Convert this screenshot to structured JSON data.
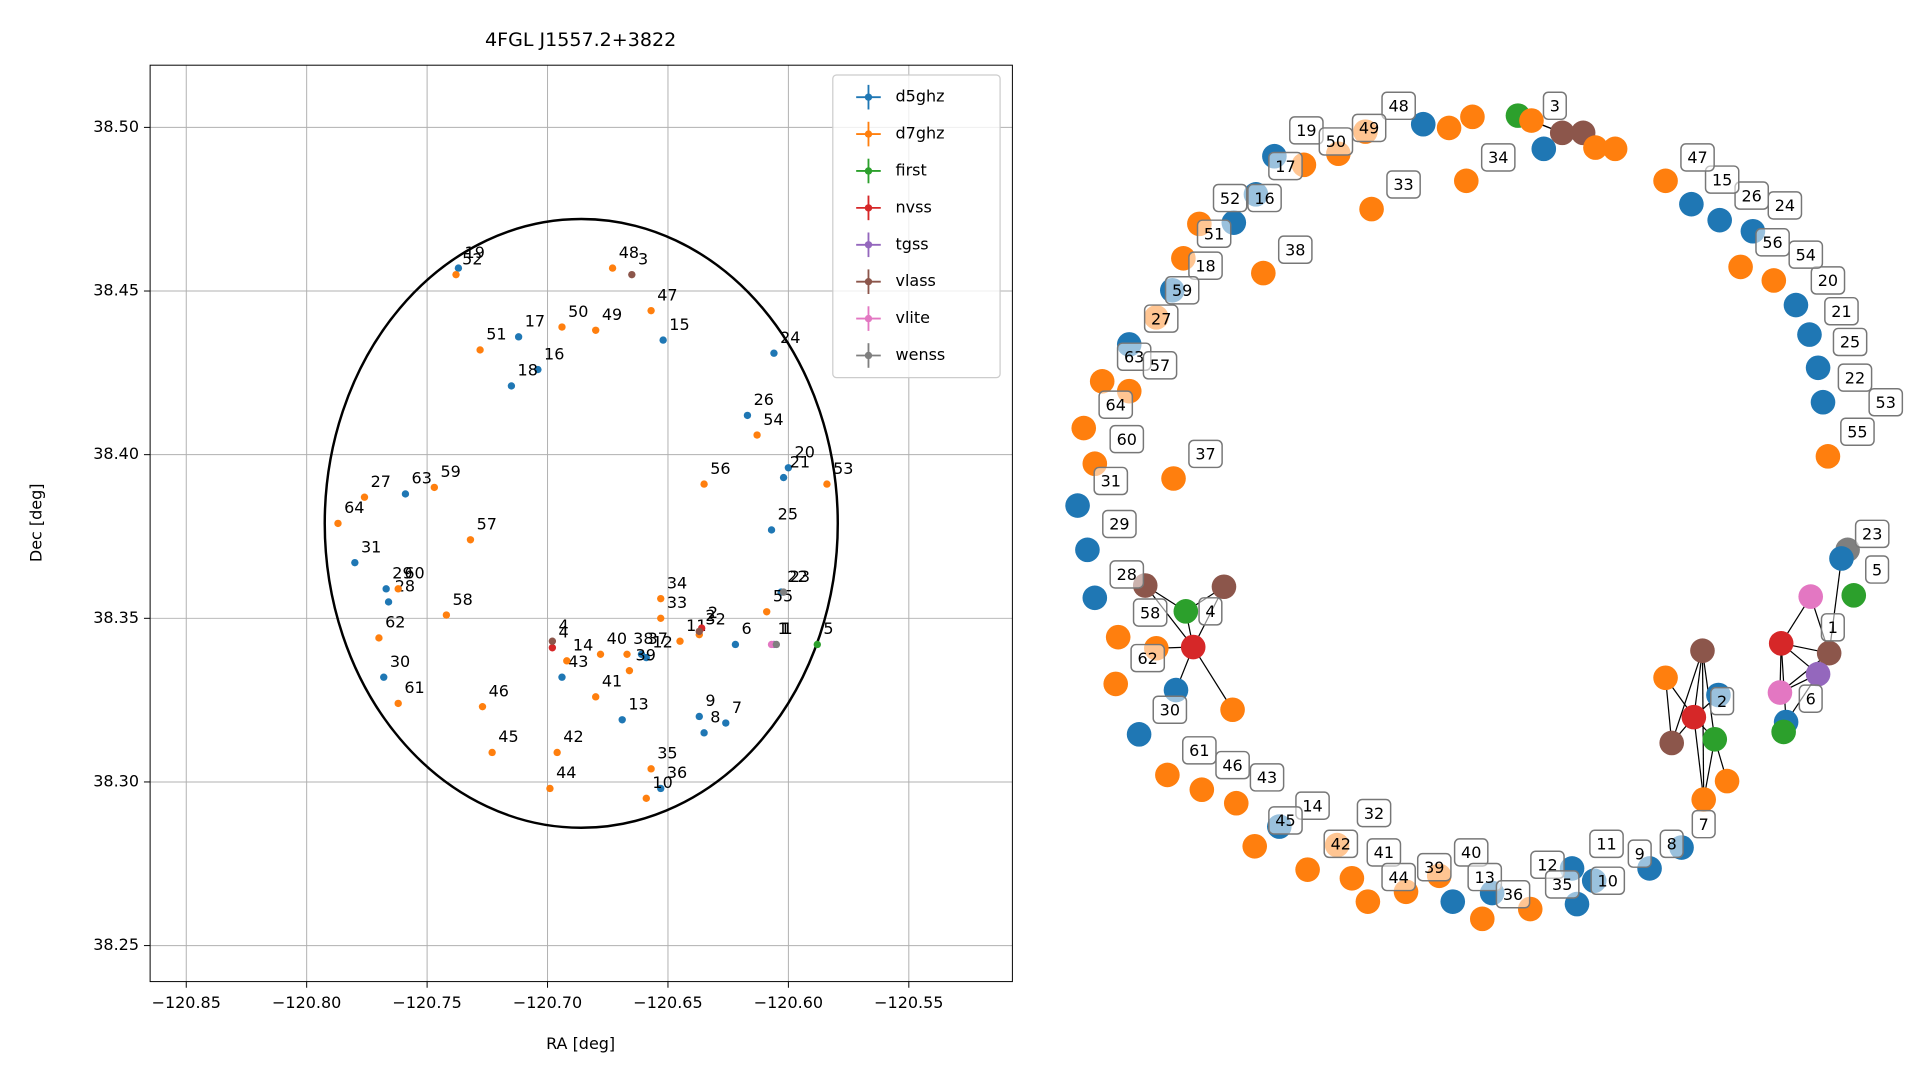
{
  "chart_data": {
    "type": "scatter",
    "title": "4FGL J1557.2+3822",
    "xlabel": "RA [deg]",
    "ylabel": "Dec [deg]",
    "xlim": [
      -120.865,
      -120.507
    ],
    "ylim": [
      38.239,
      38.519
    ],
    "xticks": [
      {
        "value": -120.85,
        "label": "−120.85"
      },
      {
        "value": -120.8,
        "label": "−120.80"
      },
      {
        "value": -120.75,
        "label": "−120.75"
      },
      {
        "value": -120.7,
        "label": "−120.70"
      },
      {
        "value": -120.65,
        "label": "−120.65"
      },
      {
        "value": -120.6,
        "label": "−120.60"
      },
      {
        "value": -120.55,
        "label": "−120.55"
      }
    ],
    "yticks": [
      38.25,
      {
        "value": 38.3,
        "label": "38.30"
      },
      38.35,
      {
        "value": 38.4,
        "label": "38.40"
      },
      38.45,
      {
        "value": 38.5,
        "label": "38.50"
      }
    ],
    "grid": true,
    "legend": "upper right",
    "ellipse": {
      "ra": -120.686,
      "dec": 38.379,
      "width": 0.213,
      "height": 0.186
    },
    "series": [
      {
        "name": "d5ghz",
        "color": "#1f77b4",
        "x": [
          -120.737,
          -120.712,
          -120.652,
          -120.704,
          -120.715,
          -120.606,
          -120.617,
          -120.6,
          -120.602,
          -120.607,
          -120.603,
          -120.622,
          -120.661,
          -120.659,
          -120.694,
          -120.669,
          -120.637,
          -120.635,
          -120.626,
          -120.653,
          -120.759,
          -120.78,
          -120.767,
          -120.766,
          -120.768
        ],
        "y": [
          38.457,
          38.436,
          38.435,
          38.426,
          38.421,
          38.431,
          38.412,
          38.396,
          38.393,
          38.377,
          38.358,
          38.342,
          38.339,
          38.338,
          38.332,
          38.319,
          38.32,
          38.315,
          38.318,
          38.298,
          38.388,
          38.367,
          38.359,
          38.355,
          38.332
        ],
        "labels": [
          "19",
          "17",
          "15",
          "16",
          "18",
          "24",
          "26",
          "20",
          "21",
          "25",
          "22",
          "6",
          "37",
          "12",
          "43",
          "13",
          "9",
          "8",
          "7",
          "36",
          "63",
          "31",
          "29",
          "28",
          "30"
        ]
      },
      {
        "name": "d7ghz",
        "color": "#ff7f0e",
        "x": [
          -120.738,
          -120.673,
          -120.657,
          -120.68,
          -120.694,
          -120.728,
          -120.613,
          -120.584,
          -120.635,
          -120.609,
          -120.637,
          -120.653,
          -120.653,
          -120.645,
          -120.667,
          -120.678,
          -120.692,
          -120.666,
          -120.68,
          -120.727,
          -120.723,
          -120.696,
          -120.699,
          -120.657,
          -120.659,
          -120.787,
          -120.776,
          -120.747,
          -120.732,
          -120.762,
          -120.77,
          -120.742,
          -120.762
        ],
        "y": [
          38.455,
          38.457,
          38.444,
          38.438,
          38.439,
          38.432,
          38.406,
          38.391,
          38.391,
          38.352,
          38.345,
          38.356,
          38.35,
          38.343,
          38.339,
          38.339,
          38.337,
          38.334,
          38.326,
          38.323,
          38.309,
          38.309,
          38.298,
          38.304,
          38.295,
          38.379,
          38.387,
          38.39,
          38.374,
          38.359,
          38.344,
          38.351,
          38.324
        ],
        "labels": [
          "52",
          "48",
          "47",
          "49",
          "50",
          "51",
          "54",
          "53",
          "56",
          "55",
          "32",
          "34",
          "33",
          "11",
          "38",
          "40",
          "14",
          "39",
          "41",
          "46",
          "45",
          "42",
          "44",
          "35",
          "10",
          "64",
          "27",
          "59",
          "57",
          "60",
          "62",
          "58",
          "61"
        ]
      },
      {
        "name": "first",
        "color": "#2ca02c",
        "x": [
          -120.588
        ],
        "y": [
          38.342
        ],
        "labels": [
          "5"
        ]
      },
      {
        "name": "nvss",
        "color": "#d62728",
        "x": [
          -120.698,
          -120.636
        ],
        "y": [
          38.341,
          38.347
        ],
        "labels": [
          "4",
          "2"
        ]
      },
      {
        "name": "tgss",
        "color": "#9467bd",
        "x": [
          -120.606
        ],
        "y": [
          38.342
        ],
        "labels": [
          "1"
        ]
      },
      {
        "name": "vlass",
        "color": "#8c564b",
        "x": [
          -120.665,
          -120.698,
          -120.637
        ],
        "y": [
          38.455,
          38.343,
          38.346
        ],
        "labels": [
          "3",
          "4",
          "2"
        ]
      },
      {
        "name": "vlite",
        "color": "#e377c2",
        "x": [
          -120.607
        ],
        "y": [
          38.342
        ],
        "labels": [
          "1"
        ]
      },
      {
        "name": "wenss",
        "color": "#7f7f7f",
        "x": [
          -120.602,
          -120.605
        ],
        "y": [
          38.358,
          38.342
        ],
        "labels": [
          "23",
          "1"
        ]
      }
    ]
  },
  "graph": {
    "node_colors": [
      "#1f77b4",
      "#ff7f0e",
      "#ff7f0e",
      "#2ca02c",
      "#ff7f0e",
      "#8c564b",
      "#8c564b",
      "#ff7f0e",
      "#ff7f0e",
      "#1f77b4",
      "#ff7f0e",
      "#ff7f0e",
      "#ff7f0e",
      "#ff7f0e",
      "#1f77b4",
      "#ff7f0e",
      "#1f77b4",
      "#1f77b4",
      "#ff7f0e",
      "#ff7f0e",
      "#ff7f0e",
      "#1f77b4",
      "#ff7f0e",
      "#1f77b4",
      "#ff7f0e",
      "#ff7f0e",
      "#ff7f0e",
      "#ff7f0e",
      "#ff7f0e",
      "#1f77b4",
      "#1f77b4",
      "#1f77b4",
      "#8c564b",
      "#8c564b",
      "#ff7f0e",
      "#2ca02c",
      "#d62728",
      "#ff7f0e",
      "#ff7f0e",
      "#1f77b4",
      "#ff7f0e",
      "#1f77b4",
      "#ff7f0e",
      "#ff7f0e",
      "#ff7f0e",
      "#ff7f0e",
      "#1f77b4",
      "#ff7f0e",
      "#ff7f0e",
      "#ff7f0e",
      "#ff7f0e",
      "#ff7f0e",
      "#ff7f0e",
      "#1f77b4",
      "#ff7f0e",
      "#1f77b4",
      "#ff7f0e",
      "#1f77b4",
      "#1f77b4",
      "#1f77b4",
      "#1f77b4",
      "#1f77b4",
      "#ff7f0e",
      "#1f77b4",
      "#1f77b4",
      "#1f77b4",
      "#ff7f0e",
      "#ff7f0e",
      "#1f77b4",
      "#1f77b4",
      "#1f77b4",
      "#1f77b4",
      "#ff7f0e",
      "#7f7f7f",
      "#1f77b4",
      "#2ca02c",
      "#e377c2",
      "#d62728",
      "#8c564b",
      "#9467bd",
      "#e377c2",
      "#1f77b4",
      "#2ca02c",
      "#ff7f0e",
      "#8c564b",
      "#1f77b4",
      "#d62728",
      "#8c564b",
      "#2ca02c",
      "#ff7f0e",
      "#ff7f0e"
    ],
    "labels": [
      "48",
      "3",
      "34",
      "33",
      "19",
      "49",
      "50",
      "17",
      "52",
      "16",
      "51",
      "38",
      "18",
      "59",
      "27",
      "63",
      "57",
      "64",
      "60",
      "37",
      "31",
      "29",
      "28",
      "58",
      "4",
      "62",
      "30",
      "61",
      "46",
      "43",
      "14",
      "32",
      "45",
      "42",
      "41",
      "40",
      "39",
      "44",
      "13",
      "12",
      "36",
      "35",
      "11",
      "10",
      "9",
      "8",
      "7",
      "2",
      "6",
      "1",
      "5",
      "23",
      "55",
      "53",
      "22",
      "25",
      "21",
      "20",
      "54",
      "56",
      "24",
      "26",
      "15",
      "47"
    ]
  }
}
